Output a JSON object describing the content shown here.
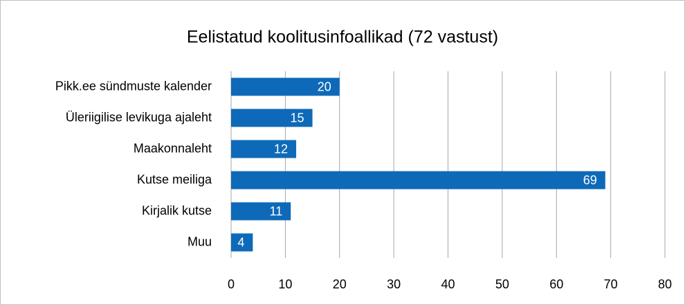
{
  "chart_data": {
    "type": "bar",
    "orientation": "horizontal",
    "title": "Eelistatud koolitusinfoallikad (72 vastust)",
    "categories": [
      "Pikk.ee sündmuste kalender",
      "Üleriigilise levikuga ajaleht",
      "Maakonnaleht",
      "Kutse meiliga",
      "Kirjalik kutse",
      "Muu"
    ],
    "values": [
      20,
      15,
      12,
      69,
      11,
      4
    ],
    "color": "#0e6ab8",
    "xlim": [
      0,
      80
    ],
    "xticks": [
      0,
      10,
      20,
      30,
      40,
      50,
      60,
      70,
      80
    ],
    "grid": true
  }
}
